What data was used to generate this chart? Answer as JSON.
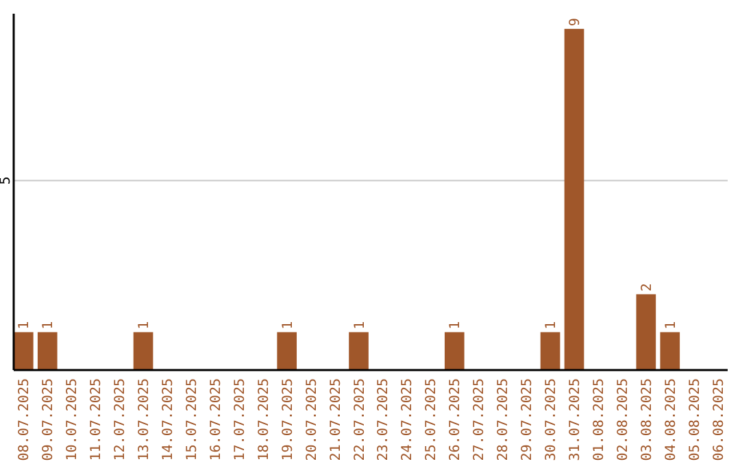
{
  "chart_data": {
    "type": "bar",
    "categories": [
      "08.07.2025",
      "09.07.2025",
      "10.07.2025",
      "11.07.2025",
      "12.07.2025",
      "13.07.2025",
      "14.07.2025",
      "15.07.2025",
      "16.07.2025",
      "17.07.2025",
      "18.07.2025",
      "19.07.2025",
      "20.07.2025",
      "21.07.2025",
      "22.07.2025",
      "23.07.2025",
      "24.07.2025",
      "25.07.2025",
      "26.07.2025",
      "27.07.2025",
      "28.07.2025",
      "29.07.2025",
      "30.07.2025",
      "31.07.2025",
      "01.08.2025",
      "02.08.2025",
      "03.08.2025",
      "04.08.2025",
      "05.08.2025",
      "06.08.2025"
    ],
    "values": [
      1,
      1,
      0,
      0,
      0,
      1,
      0,
      0,
      0,
      0,
      0,
      1,
      0,
      0,
      1,
      0,
      0,
      0,
      1,
      0,
      0,
      0,
      1,
      9,
      0,
      0,
      2,
      1,
      0,
      0
    ],
    "value_labels": [
      "1",
      "1",
      null,
      null,
      null,
      "1",
      null,
      null,
      null,
      null,
      null,
      "1",
      null,
      null,
      "1",
      null,
      null,
      null,
      "1",
      null,
      null,
      null,
      "1",
      "9",
      null,
      null,
      "2",
      "1",
      null,
      null
    ],
    "color": "#a0572a",
    "ylim": [
      0,
      9.4
    ],
    "yticks": [
      5
    ],
    "grid": "y"
  }
}
